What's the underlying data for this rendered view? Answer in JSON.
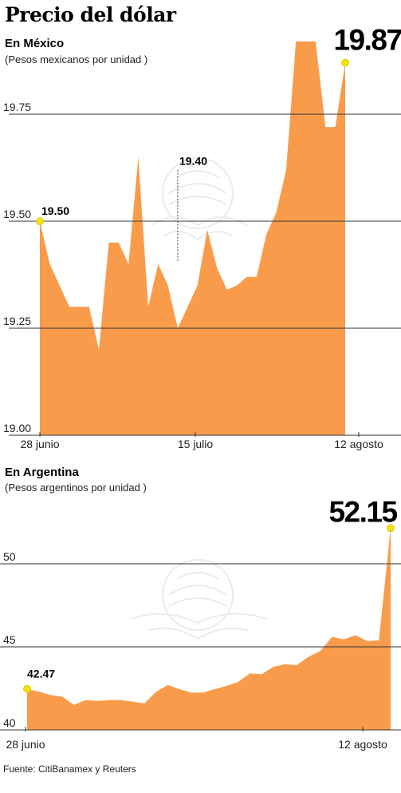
{
  "title": "Precio del dólar",
  "source": "Fuente: CitiBanamex y Reuters",
  "chart_data": [
    {
      "type": "area",
      "title": "En México",
      "subtitle": "(Pesos mexicanos por unidad )",
      "ylim": [
        19.0,
        19.9
      ],
      "yticks": [
        "19.00",
        "19.25",
        "19.50",
        "19.75"
      ],
      "xtick_labels": [
        "28 junio",
        "15 julio",
        "12 agosto"
      ],
      "color": "#F89C4C",
      "values": [
        19.5,
        19.4,
        19.35,
        19.3,
        19.3,
        19.3,
        19.2,
        19.45,
        19.45,
        19.4,
        19.65,
        19.3,
        19.4,
        19.35,
        19.25,
        19.3,
        19.35,
        19.48,
        19.39,
        19.34,
        19.35,
        19.37,
        19.37,
        19.47,
        19.52,
        19.62,
        19.92,
        19.92,
        19.92,
        19.72,
        19.72,
        19.87
      ],
      "annotations": [
        {
          "label": "19.50",
          "value": 19.5
        },
        {
          "label": "19.40",
          "value": 19.4
        },
        {
          "label": "19.87",
          "value": 19.87
        }
      ]
    },
    {
      "type": "area",
      "title": "En Argentina",
      "subtitle": "(Pesos argentinos por unidad )",
      "ylim": [
        40,
        53
      ],
      "yticks": [
        "40",
        "45",
        "50"
      ],
      "xtick_labels": [
        "28 junio",
        "12 agosto"
      ],
      "color": "#F89C4C",
      "values": [
        42.47,
        42.3,
        42.1,
        42.0,
        41.5,
        41.8,
        41.75,
        41.8,
        41.8,
        41.7,
        41.6,
        42.3,
        42.7,
        42.45,
        42.25,
        42.25,
        42.45,
        42.65,
        42.9,
        43.4,
        43.35,
        43.8,
        43.95,
        43.9,
        44.4,
        44.75,
        45.6,
        45.45,
        45.7,
        45.35,
        45.4,
        52.15
      ],
      "annotations": [
        {
          "label": "42.47",
          "value": 42.47
        },
        {
          "label": "52.15",
          "value": 52.15
        }
      ]
    }
  ]
}
